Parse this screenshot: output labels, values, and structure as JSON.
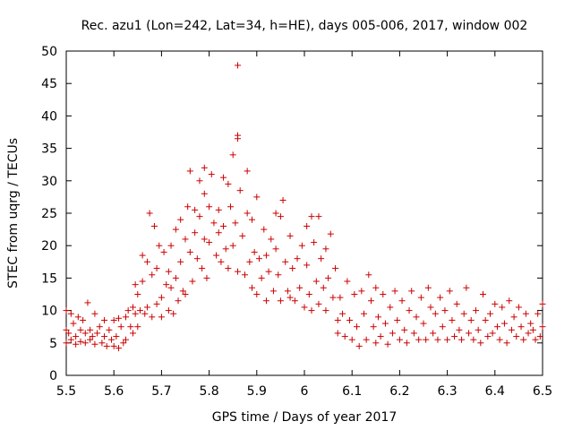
{
  "chart_data": {
    "type": "scatter",
    "title": "Rec. azu1 (Lon=242, Lat=34, h=HE), days 005-006, 2017, window 002",
    "xlabel": "GPS time / Days of year 2017",
    "ylabel": "STEC from uqrg / TECUs",
    "xlim": [
      5.5,
      6.5
    ],
    "ylim": [
      0,
      50
    ],
    "xticks": [
      5.5,
      5.6,
      5.7,
      5.8,
      5.9,
      6.0,
      6.1,
      6.2,
      6.3,
      6.4,
      6.5
    ],
    "xtick_labels": [
      "5.5",
      "5.6",
      "5.7",
      "5.8",
      "5.9",
      "6",
      "6.1",
      "6.2",
      "6.3",
      "6.4",
      "6.5"
    ],
    "yticks": [
      0,
      5,
      10,
      15,
      20,
      25,
      30,
      35,
      40,
      45,
      50
    ],
    "ytick_labels": [
      "0",
      "5",
      "10",
      "15",
      "20",
      "25",
      "30",
      "35",
      "40",
      "45",
      "50"
    ],
    "grid": false,
    "marker": "+",
    "color": "#cc0000",
    "series": [
      {
        "points": [
          [
            5.5,
            10.0
          ],
          [
            5.5,
            7.0
          ],
          [
            5.5,
            5.0
          ],
          [
            5.505,
            6.5
          ],
          [
            5.51,
            9.5
          ],
          [
            5.51,
            5.5
          ],
          [
            5.515,
            8.0
          ],
          [
            5.52,
            6.0
          ],
          [
            5.52,
            4.8
          ],
          [
            5.525,
            9.0
          ],
          [
            5.53,
            7.0
          ],
          [
            5.53,
            5.2
          ],
          [
            5.535,
            8.5
          ],
          [
            5.54,
            6.5
          ],
          [
            5.54,
            5.0
          ],
          [
            5.545,
            11.2
          ],
          [
            5.55,
            7.0
          ],
          [
            5.55,
            5.5
          ],
          [
            5.555,
            6.0
          ],
          [
            5.56,
            9.5
          ],
          [
            5.56,
            4.8
          ],
          [
            5.565,
            6.5
          ],
          [
            5.57,
            7.5
          ],
          [
            5.575,
            5.0
          ],
          [
            5.58,
            8.5
          ],
          [
            5.58,
            6.0
          ],
          [
            5.585,
            4.5
          ],
          [
            5.59,
            7.0
          ],
          [
            5.595,
            5.5
          ],
          [
            5.6,
            8.5
          ],
          [
            5.6,
            4.5
          ],
          [
            5.605,
            6.0
          ],
          [
            5.61,
            8.8
          ],
          [
            5.61,
            4.2
          ],
          [
            5.615,
            7.5
          ],
          [
            5.62,
            5.0
          ],
          [
            5.625,
            9.0
          ],
          [
            5.625,
            5.5
          ],
          [
            5.63,
            10.0
          ],
          [
            5.635,
            7.5
          ],
          [
            5.64,
            10.5
          ],
          [
            5.64,
            6.5
          ],
          [
            5.645,
            14.0
          ],
          [
            5.645,
            9.5
          ],
          [
            5.65,
            12.5
          ],
          [
            5.65,
            7.5
          ],
          [
            5.655,
            10.0
          ],
          [
            5.66,
            18.5
          ],
          [
            5.66,
            14.5
          ],
          [
            5.665,
            9.5
          ],
          [
            5.67,
            17.5
          ],
          [
            5.67,
            10.5
          ],
          [
            5.675,
            25.0
          ],
          [
            5.68,
            9.0
          ],
          [
            5.68,
            15.5
          ],
          [
            5.685,
            23.0
          ],
          [
            5.69,
            11.0
          ],
          [
            5.69,
            16.5
          ],
          [
            5.695,
            20.0
          ],
          [
            5.7,
            12.0
          ],
          [
            5.7,
            9.0
          ],
          [
            5.705,
            19.0
          ],
          [
            5.71,
            14.0
          ],
          [
            5.715,
            10.0
          ],
          [
            5.715,
            16.0
          ],
          [
            5.72,
            20.0
          ],
          [
            5.72,
            13.5
          ],
          [
            5.725,
            9.5
          ],
          [
            5.73,
            15.0
          ],
          [
            5.73,
            22.5
          ],
          [
            5.735,
            11.5
          ],
          [
            5.74,
            17.5
          ],
          [
            5.74,
            24.0
          ],
          [
            5.745,
            13.0
          ],
          [
            5.75,
            21.0
          ],
          [
            5.75,
            12.5
          ],
          [
            5.755,
            26.0
          ],
          [
            5.76,
            31.5
          ],
          [
            5.76,
            19.0
          ],
          [
            5.765,
            14.5
          ],
          [
            5.77,
            25.5
          ],
          [
            5.77,
            22.0
          ],
          [
            5.775,
            18.0
          ],
          [
            5.78,
            30.0
          ],
          [
            5.78,
            24.5
          ],
          [
            5.785,
            16.5
          ],
          [
            5.79,
            32.0
          ],
          [
            5.79,
            21.0
          ],
          [
            5.79,
            28.0
          ],
          [
            5.795,
            15.0
          ],
          [
            5.8,
            26.0
          ],
          [
            5.8,
            20.5
          ],
          [
            5.805,
            31.0
          ],
          [
            5.81,
            23.5
          ],
          [
            5.815,
            18.5
          ],
          [
            5.82,
            25.5
          ],
          [
            5.82,
            22.0
          ],
          [
            5.825,
            17.5
          ],
          [
            5.83,
            30.5
          ],
          [
            5.83,
            23.0
          ],
          [
            5.835,
            19.5
          ],
          [
            5.84,
            29.5
          ],
          [
            5.84,
            16.5
          ],
          [
            5.845,
            26.0
          ],
          [
            5.85,
            34.0
          ],
          [
            5.85,
            20.0
          ],
          [
            5.855,
            23.5
          ],
          [
            5.86,
            47.8
          ],
          [
            5.86,
            37.0
          ],
          [
            5.86,
            36.5
          ],
          [
            5.86,
            16.0
          ],
          [
            5.865,
            28.5
          ],
          [
            5.87,
            21.5
          ],
          [
            5.875,
            15.5
          ],
          [
            5.88,
            31.5
          ],
          [
            5.88,
            25.0
          ],
          [
            5.885,
            17.5
          ],
          [
            5.89,
            24.0
          ],
          [
            5.89,
            13.5
          ],
          [
            5.895,
            19.0
          ],
          [
            5.9,
            27.5
          ],
          [
            5.9,
            12.5
          ],
          [
            5.905,
            18.0
          ],
          [
            5.91,
            15.0
          ],
          [
            5.915,
            22.5
          ],
          [
            5.92,
            11.5
          ],
          [
            5.92,
            18.5
          ],
          [
            5.925,
            16.0
          ],
          [
            5.93,
            21.0
          ],
          [
            5.935,
            13.0
          ],
          [
            5.94,
            25.0
          ],
          [
            5.94,
            19.5
          ],
          [
            5.945,
            15.5
          ],
          [
            5.95,
            24.5
          ],
          [
            5.95,
            11.5
          ],
          [
            5.955,
            27.0
          ],
          [
            5.96,
            17.5
          ],
          [
            5.965,
            13.0
          ],
          [
            5.97,
            21.5
          ],
          [
            5.97,
            12.0
          ],
          [
            5.975,
            16.5
          ],
          [
            5.98,
            11.5
          ],
          [
            5.985,
            18.0
          ],
          [
            5.99,
            13.5
          ],
          [
            5.995,
            20.0
          ],
          [
            6.0,
            10.5
          ],
          [
            6.005,
            23.0
          ],
          [
            6.005,
            17.0
          ],
          [
            6.01,
            12.5
          ],
          [
            6.015,
            24.5
          ],
          [
            6.015,
            10.0
          ],
          [
            6.02,
            20.5
          ],
          [
            6.025,
            14.5
          ],
          [
            6.03,
            24.5
          ],
          [
            6.03,
            11.0
          ],
          [
            6.035,
            18.0
          ],
          [
            6.04,
            13.5
          ],
          [
            6.045,
            19.5
          ],
          [
            6.045,
            10.0
          ],
          [
            6.05,
            15.0
          ],
          [
            6.055,
            21.8
          ],
          [
            6.06,
            12.0
          ],
          [
            6.065,
            16.5
          ],
          [
            6.07,
            8.5
          ],
          [
            6.07,
            6.5
          ],
          [
            6.075,
            12.0
          ],
          [
            6.08,
            9.5
          ],
          [
            6.085,
            6.0
          ],
          [
            6.09,
            14.5
          ],
          [
            6.095,
            8.5
          ],
          [
            6.1,
            5.5
          ],
          [
            6.105,
            12.5
          ],
          [
            6.11,
            7.5
          ],
          [
            6.115,
            4.5
          ],
          [
            6.12,
            13.0
          ],
          [
            6.125,
            9.5
          ],
          [
            6.13,
            5.5
          ],
          [
            6.135,
            15.5
          ],
          [
            6.14,
            11.5
          ],
          [
            6.145,
            7.5
          ],
          [
            6.15,
            13.5
          ],
          [
            6.15,
            5.0
          ],
          [
            6.155,
            9.0
          ],
          [
            6.16,
            6.0
          ],
          [
            6.165,
            12.5
          ],
          [
            6.17,
            8.0
          ],
          [
            6.175,
            4.8
          ],
          [
            6.18,
            10.5
          ],
          [
            6.185,
            6.5
          ],
          [
            6.19,
            13.0
          ],
          [
            6.195,
            8.5
          ],
          [
            6.2,
            5.5
          ],
          [
            6.205,
            11.5
          ],
          [
            6.21,
            7.0
          ],
          [
            6.215,
            5.0
          ],
          [
            6.22,
            10.0
          ],
          [
            6.225,
            13.0
          ],
          [
            6.23,
            6.5
          ],
          [
            6.235,
            9.0
          ],
          [
            6.24,
            5.5
          ],
          [
            6.245,
            12.0
          ],
          [
            6.25,
            8.0
          ],
          [
            6.255,
            5.5
          ],
          [
            6.26,
            13.5
          ],
          [
            6.265,
            10.5
          ],
          [
            6.27,
            6.5
          ],
          [
            6.275,
            9.5
          ],
          [
            6.28,
            5.5
          ],
          [
            6.285,
            12.0
          ],
          [
            6.29,
            7.5
          ],
          [
            6.295,
            10.0
          ],
          [
            6.3,
            5.5
          ],
          [
            6.305,
            13.0
          ],
          [
            6.31,
            8.5
          ],
          [
            6.315,
            6.0
          ],
          [
            6.32,
            11.0
          ],
          [
            6.325,
            7.0
          ],
          [
            6.33,
            5.5
          ],
          [
            6.335,
            9.5
          ],
          [
            6.34,
            13.5
          ],
          [
            6.345,
            6.5
          ],
          [
            6.35,
            8.5
          ],
          [
            6.355,
            5.5
          ],
          [
            6.36,
            10.0
          ],
          [
            6.365,
            7.0
          ],
          [
            6.37,
            5.0
          ],
          [
            6.375,
            12.5
          ],
          [
            6.38,
            8.5
          ],
          [
            6.385,
            6.0
          ],
          [
            6.39,
            9.5
          ],
          [
            6.395,
            6.5
          ],
          [
            6.4,
            11.0
          ],
          [
            6.405,
            7.5
          ],
          [
            6.41,
            5.5
          ],
          [
            6.415,
            10.5
          ],
          [
            6.42,
            8.0
          ],
          [
            6.425,
            5.0
          ],
          [
            6.43,
            11.5
          ],
          [
            6.435,
            7.0
          ],
          [
            6.44,
            9.0
          ],
          [
            6.445,
            6.0
          ],
          [
            6.45,
            10.5
          ],
          [
            6.455,
            7.5
          ],
          [
            6.46,
            5.5
          ],
          [
            6.465,
            9.5
          ],
          [
            6.47,
            6.5
          ],
          [
            6.475,
            8.0
          ],
          [
            6.48,
            7.0
          ],
          [
            6.485,
            5.5
          ],
          [
            6.49,
            9.5
          ],
          [
            6.495,
            6.0
          ],
          [
            6.5,
            11.0
          ],
          [
            6.5,
            7.5
          ]
        ]
      }
    ]
  }
}
